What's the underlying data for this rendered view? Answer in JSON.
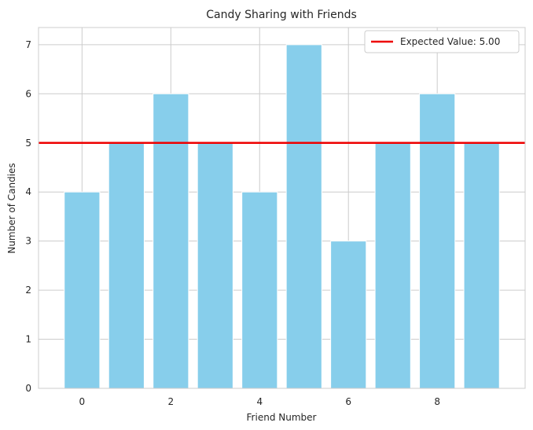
{
  "chart_data": {
    "type": "bar",
    "title": "Candy Sharing with Friends",
    "xlabel": "Friend Number",
    "ylabel": "Number of Candies",
    "categories": [
      0,
      1,
      2,
      3,
      4,
      5,
      6,
      7,
      8,
      9
    ],
    "values": [
      4,
      5,
      6,
      5,
      4,
      7,
      3,
      5,
      6,
      5
    ],
    "xticks": [
      0,
      2,
      4,
      6,
      8
    ],
    "yticks": [
      0,
      1,
      2,
      3,
      4,
      5,
      6,
      7
    ],
    "xlim": [
      -0.98,
      9.98
    ],
    "ylim": [
      0,
      7.35
    ],
    "grid": true,
    "bar_color": "#87ceeb",
    "reference_line": {
      "value": 5.0,
      "label": "Expected Value: 5.00",
      "color": "#ee0000"
    },
    "legend": {
      "position": "top-right",
      "entries": [
        "Expected Value: 5.00"
      ]
    }
  }
}
